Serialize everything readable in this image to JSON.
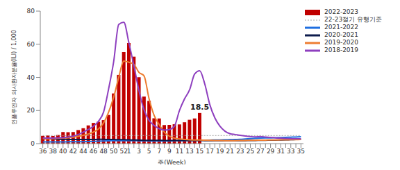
{
  "chart_data": {
    "type": "bar",
    "x_label": "주(Week)",
    "y_label": "인플루엔자 의사환자분율(ILI) / 1,000",
    "categories": [
      "36",
      null,
      "38",
      null,
      "40",
      null,
      "42",
      null,
      "44",
      null,
      "46",
      null,
      "48",
      null,
      "50",
      null,
      "52",
      "1",
      null,
      "3",
      null,
      "5",
      null,
      "7",
      null,
      "9",
      null,
      "11",
      null,
      "13",
      null,
      "15",
      null,
      "17",
      null,
      "19",
      null,
      "21",
      null,
      "23",
      null,
      "25",
      null,
      "27",
      null,
      "29",
      null,
      "31",
      null,
      "33",
      null,
      "35"
    ],
    "series": [
      {
        "name": "2022-2023",
        "type": "bar",
        "color": "#c00000",
        "values": [
          4.7,
          4.9,
          4.6,
          5.2,
          7.0,
          6.9,
          7.0,
          8.2,
          9.3,
          11.0,
          12.5,
          13.2,
          14.2,
          17.3,
          30.3,
          41.5,
          55.3,
          60.7,
          52.5,
          40.1,
          28.4,
          25.8,
          15.3,
          15.2,
          11.2,
          11.3,
          11.7,
          11.6,
          12.9,
          14.4,
          15.2,
          18.5,
          null,
          null,
          null,
          null,
          null,
          null,
          null,
          null,
          null,
          null,
          null,
          null,
          null,
          null,
          null,
          null,
          null,
          null,
          null,
          null
        ]
      },
      {
        "name": "22-23절기 유행기준",
        "type": "line",
        "color": "#a6a6a6",
        "line_style": "dotted",
        "marker": "none",
        "values": [
          4.9,
          4.9,
          4.9,
          4.9,
          4.9,
          4.9,
          4.9,
          4.9,
          4.9,
          4.9,
          4.9,
          4.9,
          4.9,
          4.9,
          4.9,
          4.9,
          4.9,
          4.9,
          4.9,
          4.9,
          4.9,
          4.9,
          4.9,
          4.9,
          4.9,
          4.9,
          4.9,
          4.9,
          4.9,
          4.9,
          4.9,
          4.9,
          4.9,
          4.9,
          4.9,
          4.9,
          4.9,
          4.9,
          4.9,
          4.9,
          4.9,
          4.9,
          4.9,
          4.9,
          4.9,
          4.9,
          4.9,
          4.9,
          4.9,
          4.9,
          4.9,
          4.9
        ]
      },
      {
        "name": "2021-2022",
        "type": "line",
        "color": "#1f6fe0",
        "line_style": "solid",
        "marker": "none",
        "values": [
          1.0,
          1.0,
          1.0,
          1.0,
          1.0,
          1.1,
          1.1,
          1.2,
          1.2,
          1.3,
          1.4,
          1.5,
          1.6,
          1.7,
          1.8,
          1.8,
          1.8,
          1.8,
          1.8,
          1.7,
          1.7,
          1.6,
          1.6,
          1.6,
          1.6,
          1.6,
          1.7,
          1.8,
          1.8,
          1.9,
          1.9,
          2.0,
          2.1,
          2.1,
          2.2,
          2.2,
          2.3,
          2.4,
          2.5,
          2.6,
          2.8,
          3.0,
          3.2,
          3.4,
          3.5,
          3.5,
          3.6,
          3.7,
          3.8,
          3.9,
          4.0,
          4.2
        ]
      },
      {
        "name": "2020-2021",
        "type": "line",
        "color": "#0d1b4c",
        "line_style": "solid",
        "marker": "none",
        "values": [
          2.8,
          2.9,
          2.8,
          2.7,
          2.6,
          2.6,
          2.5,
          2.5,
          2.5,
          2.5,
          2.5,
          2.6,
          2.6,
          2.5,
          2.5,
          2.4,
          2.4,
          2.3,
          2.2,
          2.1,
          2.0,
          2.0,
          2.0,
          2.0,
          1.9,
          1.9,
          1.9,
          1.9,
          1.9,
          1.9,
          1.9,
          1.9,
          1.8,
          1.8,
          1.8,
          1.8,
          1.8,
          1.8,
          1.8,
          1.8,
          1.8,
          1.9,
          1.9,
          2.0,
          2.0,
          2.1,
          2.1,
          2.2,
          2.3,
          2.4,
          2.5,
          2.6
        ]
      },
      {
        "name": "2019-2020",
        "type": "line",
        "color": "#ed7d31",
        "line_style": "solid",
        "marker": "none",
        "values": [
          3.0,
          2.9,
          3.0,
          3.2,
          3.4,
          3.6,
          3.9,
          4.4,
          5.0,
          5.8,
          7.0,
          8.9,
          12.5,
          19.0,
          28.0,
          40.0,
          49.8,
          49.1,
          47.8,
          43.0,
          40.9,
          27.0,
          17.0,
          11.5,
          7.0,
          4.5,
          3.3,
          2.8,
          2.5,
          2.3,
          2.2,
          2.2,
          2.1,
          2.0,
          1.9,
          1.9,
          1.8,
          1.8,
          1.8,
          1.9,
          1.9,
          2.0,
          2.0,
          2.1,
          2.1,
          2.2,
          2.2,
          2.3,
          2.3,
          2.4,
          2.4,
          2.5
        ]
      },
      {
        "name": "2018-2019",
        "type": "line",
        "color": "#8e3fbf",
        "line_style": "solid",
        "marker": "none",
        "values": [
          3.5,
          3.3,
          3.4,
          3.5,
          3.6,
          4.0,
          4.5,
          5.5,
          7.0,
          8.5,
          10.5,
          13.5,
          19.0,
          33.0,
          49.5,
          71.9,
          73.3,
          61.0,
          47.0,
          32.0,
          20.5,
          14.0,
          11.0,
          9.0,
          8.2,
          8.5,
          10.5,
          20.0,
          27.0,
          32.5,
          42.0,
          44.0,
          36.0,
          23.5,
          15.5,
          10.5,
          7.5,
          6.0,
          5.5,
          5.0,
          4.6,
          4.3,
          4.1,
          4.3,
          4.0,
          3.8,
          3.5,
          3.3,
          3.1,
          3.0,
          2.9,
          2.9
        ]
      }
    ],
    "annotations": [
      {
        "text": "18.5",
        "x": "15",
        "y": 18.5
      }
    ],
    "ylim": [
      0,
      80
    ],
    "yticks": [
      0,
      20,
      40,
      60,
      80
    ],
    "grid": false,
    "legend": "upper right"
  }
}
